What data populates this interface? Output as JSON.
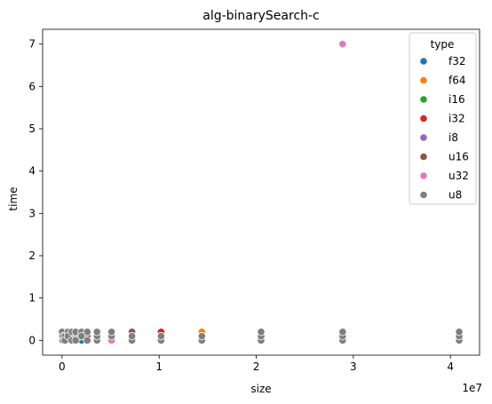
{
  "chart_data": {
    "type": "scatter",
    "title": "alg-binarySearch-c",
    "xlabel": "size",
    "ylabel": "time",
    "x_offset_label": "1e7",
    "xlim": [
      -2000000,
      43000000
    ],
    "ylim": [
      -0.35,
      7.35
    ],
    "x_ticks": [
      0,
      10000000,
      20000000,
      30000000,
      40000000
    ],
    "x_tick_labels": [
      "0",
      "1",
      "2",
      "3",
      "4"
    ],
    "y_ticks": [
      0,
      1,
      2,
      3,
      4,
      5,
      6,
      7
    ],
    "y_tick_labels": [
      "0",
      "1",
      "2",
      "3",
      "4",
      "5",
      "6",
      "7"
    ],
    "grid": false,
    "legend": {
      "title": "type",
      "placement": "top-right"
    },
    "series": [
      {
        "name": "f32",
        "color": "#1f77b4",
        "points": [
          [
            0,
            0.2
          ],
          [
            100000,
            0.1
          ],
          [
            300000,
            0.1
          ],
          [
            600000,
            0.1
          ],
          [
            1000000,
            0.0
          ],
          [
            1400000,
            0.1
          ],
          [
            2000000,
            0.0
          ],
          [
            2600000,
            0.1
          ],
          [
            3600000,
            0.1
          ],
          [
            5100000,
            0.2
          ],
          [
            7200000,
            0.1
          ],
          [
            10200000,
            0.1
          ],
          [
            14400000,
            0.1
          ],
          [
            20500000,
            0.2
          ],
          [
            28900000,
            0.1
          ],
          [
            40900000,
            0.2
          ]
        ]
      },
      {
        "name": "f64",
        "color": "#ff7f0e",
        "points": [
          [
            0,
            0.1
          ],
          [
            100000,
            0.2
          ],
          [
            300000,
            0.1
          ],
          [
            600000,
            0.1
          ],
          [
            1000000,
            0.1
          ],
          [
            1400000,
            0.2
          ],
          [
            2000000,
            0.1
          ],
          [
            2600000,
            0.1
          ],
          [
            3600000,
            0.1
          ],
          [
            5100000,
            0.1
          ],
          [
            7200000,
            0.1
          ],
          [
            10200000,
            0.1
          ],
          [
            14400000,
            0.2
          ],
          [
            20500000,
            0.1
          ],
          [
            28900000,
            0.2
          ],
          [
            40900000,
            0.1
          ]
        ]
      },
      {
        "name": "i16",
        "color": "#2ca02c",
        "points": [
          [
            0,
            0.2
          ],
          [
            100000,
            0.1
          ],
          [
            300000,
            0.1
          ],
          [
            600000,
            0.2
          ],
          [
            1000000,
            0.1
          ],
          [
            1400000,
            0.1
          ],
          [
            2000000,
            0.2
          ],
          [
            2600000,
            0.1
          ],
          [
            3600000,
            0.1
          ],
          [
            5100000,
            0.1
          ],
          [
            7200000,
            0.2
          ],
          [
            10200000,
            0.1
          ],
          [
            14400000,
            0.1
          ],
          [
            20500000,
            0.1
          ],
          [
            28900000,
            0.1
          ],
          [
            40900000,
            0.1
          ]
        ]
      },
      {
        "name": "i32",
        "color": "#d62728",
        "points": [
          [
            0,
            0.1
          ],
          [
            100000,
            0.1
          ],
          [
            300000,
            0.2
          ],
          [
            600000,
            0.1
          ],
          [
            1000000,
            0.2
          ],
          [
            1400000,
            0.1
          ],
          [
            2000000,
            0.1
          ],
          [
            2600000,
            0.2
          ],
          [
            3600000,
            0.1
          ],
          [
            5100000,
            0.1
          ],
          [
            7200000,
            0.2
          ],
          [
            10200000,
            0.2
          ],
          [
            14400000,
            0.1
          ],
          [
            20500000,
            0.1
          ],
          [
            28900000,
            0.1
          ],
          [
            40900000,
            0.1
          ]
        ]
      },
      {
        "name": "i8",
        "color": "#9467bd",
        "points": [
          [
            0,
            0.2
          ],
          [
            100000,
            0.1
          ],
          [
            300000,
            0.1
          ],
          [
            600000,
            0.1
          ],
          [
            1000000,
            0.1
          ],
          [
            1400000,
            0.1
          ],
          [
            2000000,
            0.1
          ],
          [
            2600000,
            0.1
          ],
          [
            3600000,
            0.1
          ],
          [
            5100000,
            0.1
          ],
          [
            7200000,
            0.1
          ],
          [
            10200000,
            0.1
          ],
          [
            14400000,
            0.1
          ],
          [
            20500000,
            0.1
          ],
          [
            28900000,
            0.1
          ],
          [
            40900000,
            0.1
          ]
        ]
      },
      {
        "name": "u16",
        "color": "#8c564b",
        "points": [
          [
            0,
            0.1
          ],
          [
            100000,
            0.2
          ],
          [
            300000,
            0.1
          ],
          [
            600000,
            0.1
          ],
          [
            1000000,
            0.2
          ],
          [
            1400000,
            0.1
          ],
          [
            2000000,
            0.2
          ],
          [
            2600000,
            0.1
          ],
          [
            3600000,
            0.2
          ],
          [
            5100000,
            0.1
          ],
          [
            7200000,
            0.2
          ],
          [
            10200000,
            0.1
          ],
          [
            14400000,
            0.1
          ],
          [
            20500000,
            0.1
          ],
          [
            28900000,
            0.1
          ],
          [
            40900000,
            0.1
          ]
        ]
      },
      {
        "name": "u32",
        "color": "#e377c2",
        "points": [
          [
            0,
            0.2
          ],
          [
            100000,
            0.1
          ],
          [
            300000,
            0.2
          ],
          [
            600000,
            0.1
          ],
          [
            1000000,
            0.1
          ],
          [
            1400000,
            0.1
          ],
          [
            2000000,
            0.1
          ],
          [
            2600000,
            0.2
          ],
          [
            3600000,
            0.1
          ],
          [
            5100000,
            0.0
          ],
          [
            7200000,
            0.1
          ],
          [
            10200000,
            0.1
          ],
          [
            14400000,
            0.1
          ],
          [
            20500000,
            0.1
          ],
          [
            28900000,
            7.0
          ],
          [
            40900000,
            0.1
          ]
        ]
      },
      {
        "name": "u8",
        "color": "#7f7f7f",
        "points": [
          [
            0,
            0.0
          ],
          [
            0,
            0.1
          ],
          [
            0,
            0.2
          ],
          [
            100000,
            0.0
          ],
          [
            100000,
            0.1
          ],
          [
            300000,
            0.1
          ],
          [
            300000,
            0.0
          ],
          [
            600000,
            0.2
          ],
          [
            600000,
            0.1
          ],
          [
            1000000,
            0.0
          ],
          [
            1000000,
            0.2
          ],
          [
            1400000,
            0.2
          ],
          [
            1400000,
            0.0
          ],
          [
            2000000,
            0.2
          ],
          [
            2000000,
            0.1
          ],
          [
            2600000,
            0.0
          ],
          [
            2600000,
            0.2
          ],
          [
            3600000,
            0.0
          ],
          [
            3600000,
            0.1
          ],
          [
            3600000,
            0.2
          ],
          [
            5100000,
            0.1
          ],
          [
            5100000,
            0.2
          ],
          [
            7200000,
            0.0
          ],
          [
            7200000,
            0.1
          ],
          [
            10200000,
            0.0
          ],
          [
            10200000,
            0.1
          ],
          [
            14400000,
            0.0
          ],
          [
            14400000,
            0.1
          ],
          [
            20500000,
            0.0
          ],
          [
            20500000,
            0.1
          ],
          [
            20500000,
            0.2
          ],
          [
            28900000,
            0.0
          ],
          [
            28900000,
            0.1
          ],
          [
            28900000,
            0.2
          ],
          [
            40900000,
            0.0
          ],
          [
            40900000,
            0.1
          ],
          [
            40900000,
            0.2
          ]
        ]
      }
    ]
  }
}
